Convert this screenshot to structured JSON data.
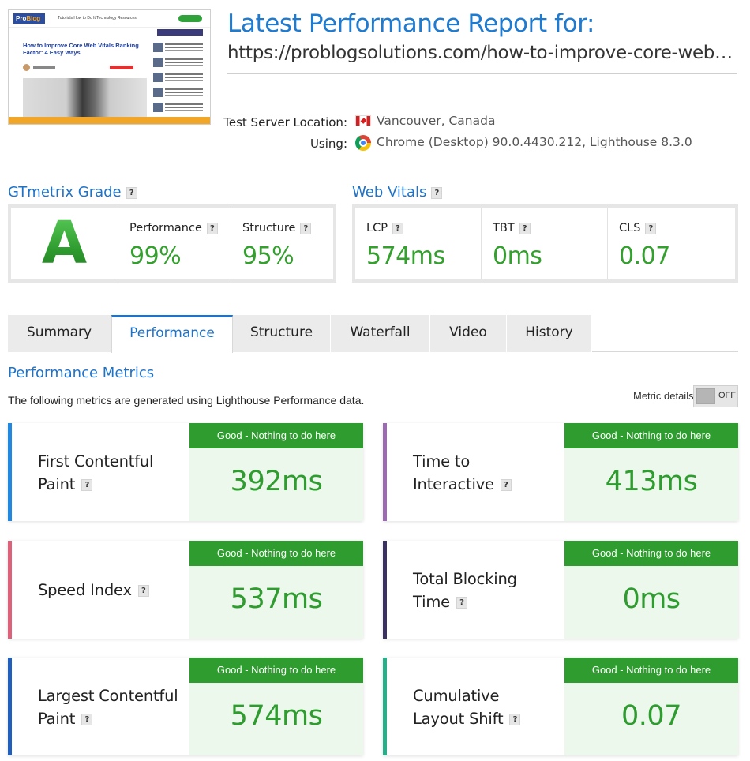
{
  "thumbnail": {
    "logo_pro": "Pro",
    "logo_blog": "Blog",
    "nav_links": "Tutorials   How to Do It   Technology Resources",
    "article_title": "How to Improve Core Web Vitals Ranking Factor: 4 Easy Ways"
  },
  "header": {
    "title": "Latest Performance Report for:",
    "url": "https://problogsolutions.com/how-to-improve-core-web-vitals-ranking-factor/",
    "server_label": "Test Server Location:",
    "server_value": "Vancouver, Canada",
    "using_label": "Using:",
    "using_value": "Chrome (Desktop) 90.0.4430.212, Lighthouse 8.3.0"
  },
  "grade": {
    "heading": "GTmetrix Grade",
    "letter": "A",
    "performance_label": "Performance",
    "performance_value": "99%",
    "structure_label": "Structure",
    "structure_value": "95%"
  },
  "web_vitals": {
    "heading": "Web Vitals",
    "lcp_label": "LCP",
    "lcp_value": "574ms",
    "tbt_label": "TBT",
    "tbt_value": "0ms",
    "cls_label": "CLS",
    "cls_value": "0.07"
  },
  "tabs": [
    "Summary",
    "Performance",
    "Structure",
    "Waterfall",
    "Video",
    "History"
  ],
  "active_tab": "Performance",
  "metrics_section": {
    "title": "Performance Metrics",
    "description": "The following metrics are generated using Lighthouse Performance data.",
    "details_label": "Metric details",
    "toggle_state": "OFF"
  },
  "help_glyph": "?",
  "metrics": [
    {
      "line1": "First Contentful",
      "line2": "Paint",
      "status": "Good - Nothing to do here",
      "value": "392ms",
      "color": "#1e88e5"
    },
    {
      "line1": "Time to",
      "line2": "Interactive",
      "status": "Good - Nothing to do here",
      "value": "413ms",
      "color": "#9b6bb0"
    },
    {
      "line1": "Speed Index",
      "line2": "",
      "status": "Good - Nothing to do here",
      "value": "537ms",
      "color": "#e0607a"
    },
    {
      "line1": "Total Blocking",
      "line2": "Time",
      "status": "Good - Nothing to do here",
      "value": "0ms",
      "color": "#3b3160"
    },
    {
      "line1": "Largest Contentful",
      "line2": "Paint",
      "status": "Good - Nothing to do here",
      "value": "574ms",
      "color": "#1e5fc0"
    },
    {
      "line1": "Cumulative",
      "line2": "Layout Shift",
      "status": "Good - Nothing to do here",
      "value": "0.07",
      "color": "#2aae8a"
    }
  ],
  "colors": {
    "accent_blue": "#1e73c8",
    "good_green": "#2e9c2e",
    "good_bg": "#edf8ed"
  }
}
